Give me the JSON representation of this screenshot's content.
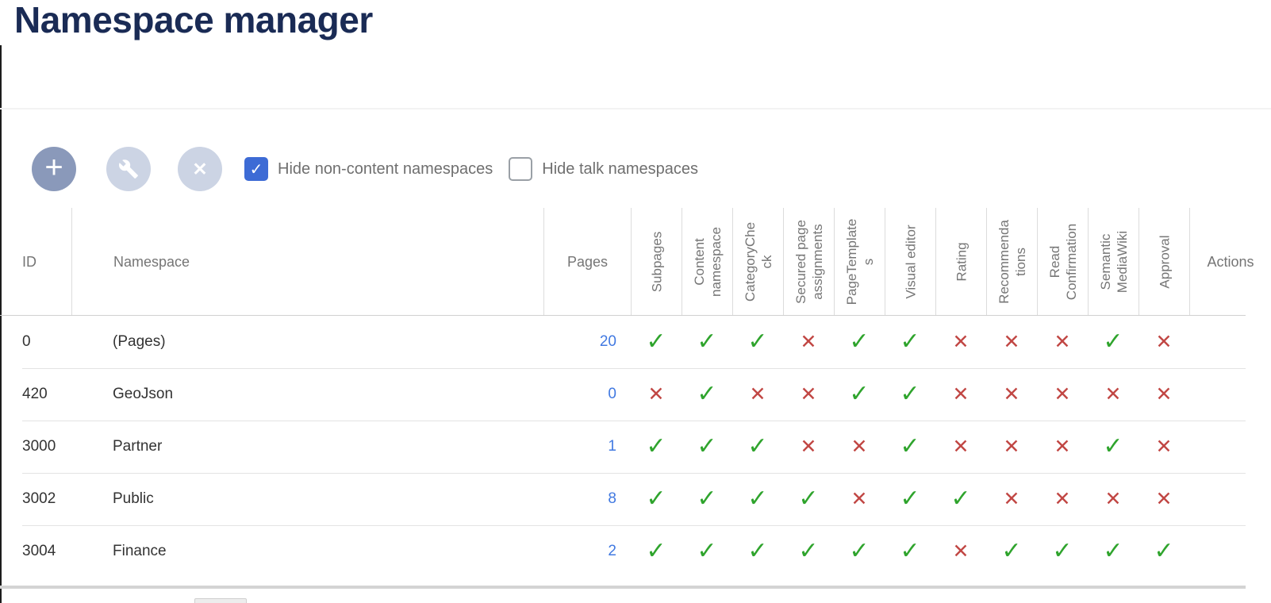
{
  "page": {
    "title": "Namespace manager"
  },
  "toolbar": {
    "buttons": {
      "add": {
        "glyph": "+",
        "enabled": true
      },
      "edit": {
        "icon": "wrench-icon",
        "enabled": false
      },
      "delete": {
        "glyph": "✕",
        "enabled": false
      }
    },
    "checkboxes": [
      {
        "label": "Hide non-content namespaces",
        "checked": true
      },
      {
        "label": "Hide talk namespaces",
        "checked": false
      }
    ]
  },
  "icons": {
    "check": "✓",
    "cross": "✕",
    "checkbox_tick": "✓"
  },
  "colors": {
    "title_navy": "#1a2b55",
    "accent_blue": "#3d6bd5",
    "link_blue": "#4179e1",
    "check_green": "#2fa42d",
    "cross_red": "#c14744",
    "button_enabled": "#8a99ba",
    "button_disabled": "#ccd4e4"
  },
  "table": {
    "columns": {
      "id": "ID",
      "namespace": "Namespace",
      "pages": "Pages",
      "actions": "Actions"
    },
    "feature_columns": [
      {
        "label": "Subpages",
        "display": "Subpages"
      },
      {
        "label": "Content namespace",
        "display": "Content\nnamespace"
      },
      {
        "label": "CategoryCheck",
        "display": "CategoryChe\nck"
      },
      {
        "label": "Secured page assignments",
        "display": "Secured page\nassignments"
      },
      {
        "label": "PageTemplates",
        "display": "PageTemplate\ns"
      },
      {
        "label": "Visual editor",
        "display": "Visual editor"
      },
      {
        "label": "Rating",
        "display": "Rating"
      },
      {
        "label": "Recommendations",
        "display": "Recommenda\ntions"
      },
      {
        "label": "Read Confirmation",
        "display": "Read\nConfirmation"
      },
      {
        "label": "Semantic MediaWiki",
        "display": "Semantic\nMediaWiki"
      },
      {
        "label": "Approval",
        "display": "Approval"
      }
    ],
    "rows": [
      {
        "id": "0",
        "namespace": "(Pages)",
        "pages": "20",
        "features": [
          true,
          true,
          true,
          false,
          true,
          true,
          false,
          false,
          false,
          true,
          false
        ]
      },
      {
        "id": "420",
        "namespace": "GeoJson",
        "pages": "0",
        "features": [
          false,
          true,
          false,
          false,
          true,
          true,
          false,
          false,
          false,
          false,
          false
        ]
      },
      {
        "id": "3000",
        "namespace": "Partner",
        "pages": "1",
        "features": [
          true,
          true,
          true,
          false,
          false,
          true,
          false,
          false,
          false,
          true,
          false
        ]
      },
      {
        "id": "3002",
        "namespace": "Public",
        "pages": "8",
        "features": [
          true,
          true,
          true,
          true,
          false,
          true,
          true,
          false,
          false,
          false,
          false
        ]
      },
      {
        "id": "3004",
        "namespace": "Finance",
        "pages": "2",
        "features": [
          true,
          true,
          true,
          true,
          true,
          true,
          false,
          true,
          true,
          true,
          true
        ]
      }
    ]
  }
}
